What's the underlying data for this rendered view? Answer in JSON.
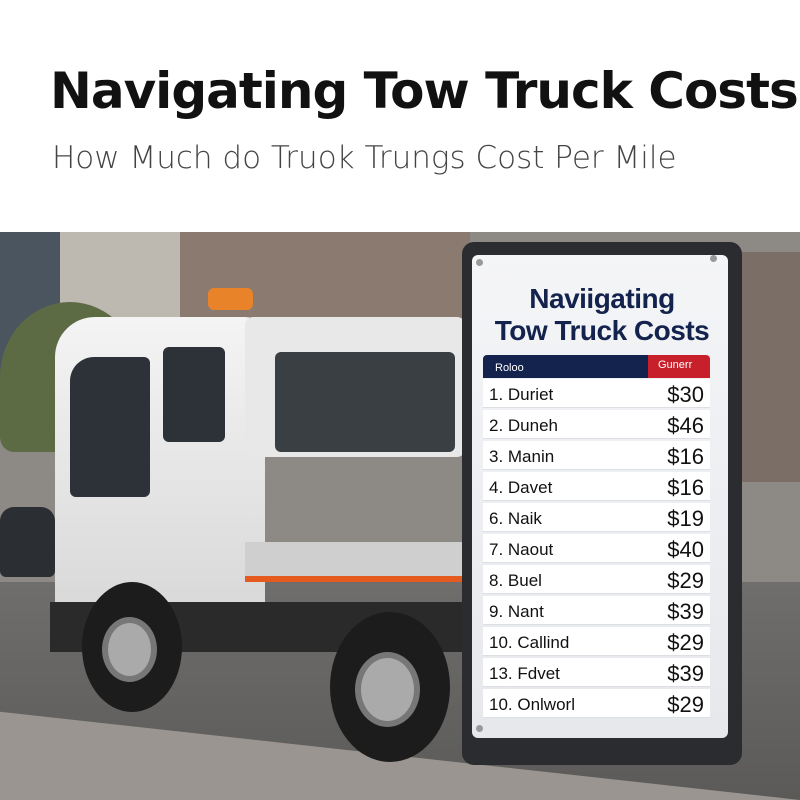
{
  "header": {
    "title": "Navigating Tow Truck Costs",
    "subtitle": "How Much do Truok Trungs Cost Per Mile"
  },
  "sign": {
    "title_line1": "Naviigating",
    "title_line2": "Tow Truck Costs",
    "col_left": "Roloo",
    "col_right": "Gunerr",
    "rows": [
      {
        "name": "1. Duriet",
        "price": "$30"
      },
      {
        "name": "2. Duneh",
        "price": "$46"
      },
      {
        "name": "3. Manin",
        "price": "$16"
      },
      {
        "name": "4. Davet",
        "price": "$16"
      },
      {
        "name": "6. Naik",
        "price": "$19"
      },
      {
        "name": "7. Naout",
        "price": "$40"
      },
      {
        "name": "8. Buel",
        "price": "$29"
      },
      {
        "name": "9. Nant",
        "price": "$39"
      },
      {
        "name": "10. Callind",
        "price": "$29"
      },
      {
        "name": "13. Fdvet",
        "price": "$39"
      },
      {
        "name": "10. Onlworl",
        "price": "$29"
      }
    ],
    "colors": {
      "navy": "#14234e",
      "red": "#c8202b"
    }
  }
}
